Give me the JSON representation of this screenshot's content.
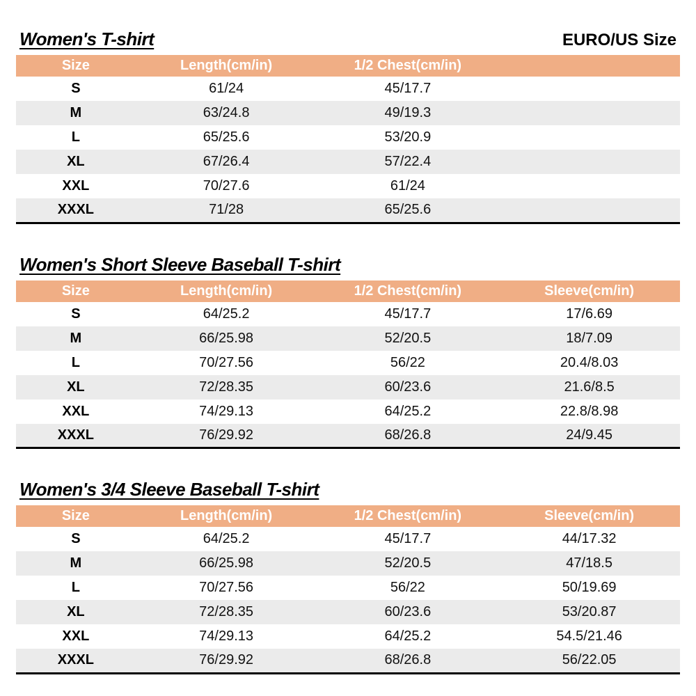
{
  "page": {
    "size_standard_label": "EURO/US Size"
  },
  "colors": {
    "header_bg": "#F0AE85",
    "header_text": "#FFFFFF",
    "stripe_bg": "#EBEBEB",
    "table_bottom_border": "#000000"
  },
  "tables": [
    {
      "title": "Women's T-shirt",
      "columns": [
        "Size",
        "Length(cm/in)",
        "1/2 Chest(cm/in)",
        ""
      ],
      "rows": [
        [
          "S",
          "61/24",
          "45/17.7",
          ""
        ],
        [
          "M",
          "63/24.8",
          "49/19.3",
          ""
        ],
        [
          "L",
          "65/25.6",
          "53/20.9",
          ""
        ],
        [
          "XL",
          "67/26.4",
          "57/22.4",
          ""
        ],
        [
          "XXL",
          "70/27.6",
          "61/24",
          ""
        ],
        [
          "XXXL",
          "71/28",
          "65/25.6",
          ""
        ]
      ]
    },
    {
      "title": "Women's Short Sleeve Baseball T-shirt",
      "columns": [
        "Size",
        "Length(cm/in)",
        "1/2 Chest(cm/in)",
        "Sleeve(cm/in)"
      ],
      "rows": [
        [
          "S",
          "64/25.2",
          "45/17.7",
          "17/6.69"
        ],
        [
          "M",
          "66/25.98",
          "52/20.5",
          "18/7.09"
        ],
        [
          "L",
          "70/27.56",
          "56/22",
          "20.4/8.03"
        ],
        [
          "XL",
          "72/28.35",
          "60/23.6",
          "21.6/8.5"
        ],
        [
          "XXL",
          "74/29.13",
          "64/25.2",
          "22.8/8.98"
        ],
        [
          "XXXL",
          "76/29.92",
          "68/26.8",
          "24/9.45"
        ]
      ]
    },
    {
      "title": "Women's 3/4 Sleeve Baseball T-shirt",
      "columns": [
        "Size",
        "Length(cm/in)",
        "1/2 Chest(cm/in)",
        "Sleeve(cm/in)"
      ],
      "rows": [
        [
          "S",
          "64/25.2",
          "45/17.7",
          "44/17.32"
        ],
        [
          "M",
          "66/25.98",
          "52/20.5",
          "47/18.5"
        ],
        [
          "L",
          "70/27.56",
          "56/22",
          "50/19.69"
        ],
        [
          "XL",
          "72/28.35",
          "60/23.6",
          "53/20.87"
        ],
        [
          "XXL",
          "74/29.13",
          "64/25.2",
          "54.5/21.46"
        ],
        [
          "XXXL",
          "76/29.92",
          "68/26.8",
          "56/22.05"
        ]
      ]
    }
  ]
}
